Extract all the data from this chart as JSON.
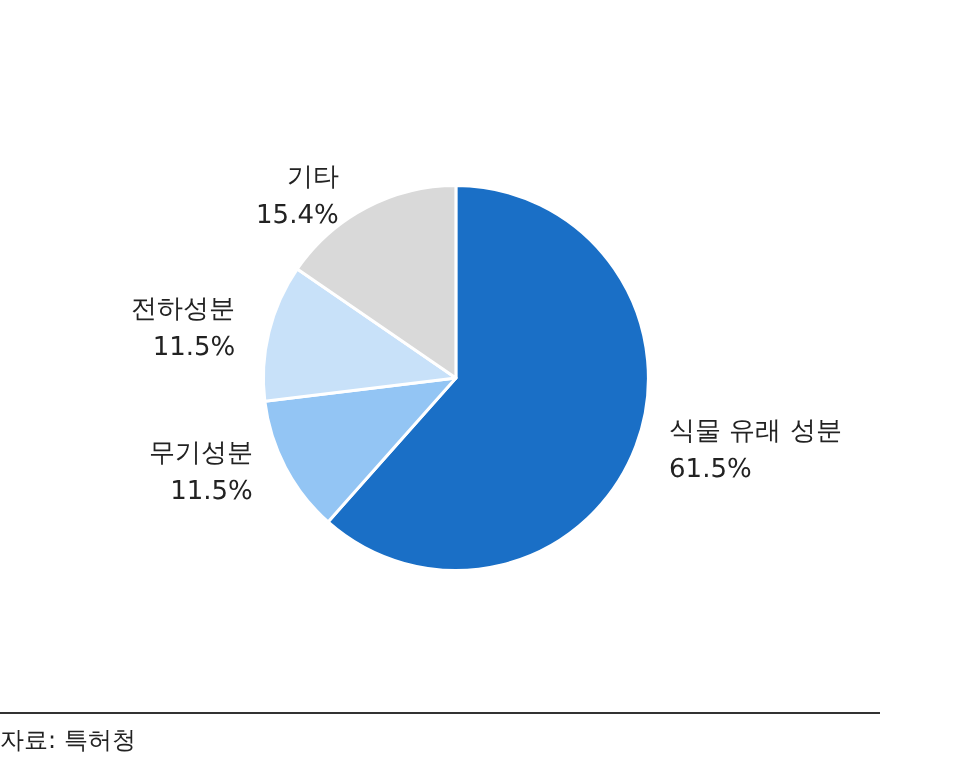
{
  "chart_data": {
    "type": "pie",
    "categories": [
      "식물 유래 성분",
      "무기성분",
      "전하성분",
      "기타"
    ],
    "values": [
      61.5,
      11.5,
      11.5,
      15.4
    ],
    "value_labels": [
      "61.5%",
      "11.5%",
      "11.5%",
      "15.4%"
    ],
    "colors": [
      "#1a6fc6",
      "#93c5f4",
      "#c8e1f9",
      "#d9d9d9"
    ],
    "annotations": [
      "자료: 특허청"
    ],
    "legend": false
  }
}
